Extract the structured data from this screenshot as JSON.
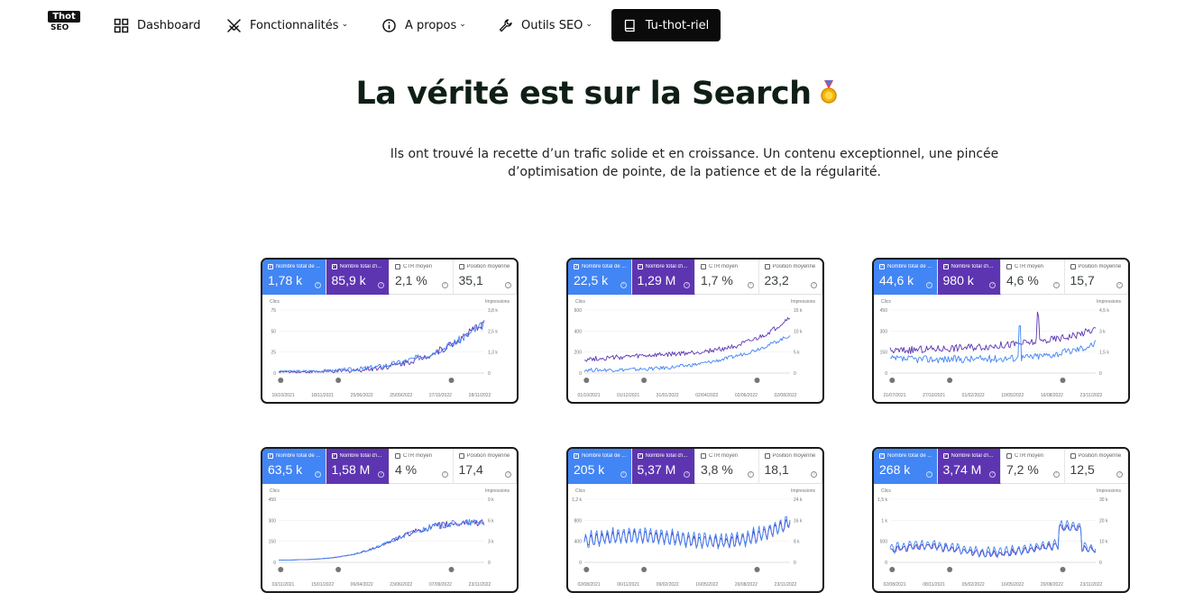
{
  "nav": {
    "logo_top": "Thot",
    "logo_bottom": "SEO",
    "items": [
      {
        "label": "Dashboard",
        "icon": "grid-icon",
        "dropdown": false
      },
      {
        "label": "Fonctionnalités",
        "icon": "swords-icon",
        "dropdown": true
      },
      {
        "label": "A propos",
        "icon": "info-icon",
        "dropdown": true
      },
      {
        "label": "Outils SEO",
        "icon": "wrench-icon",
        "dropdown": true
      }
    ],
    "cta": {
      "label": "Tu-thot-riel",
      "icon": "book-icon"
    }
  },
  "hero": {
    "title": "La vérité est sur la Search",
    "subtitle_line1": "Ils ont trouvé la recette d’un trafic solide et en croissance. Un contenu exceptionnel, une pincée",
    "subtitle_line2": "d’optimisation de pointe, de la patience et de la régularité."
  },
  "metric_labels": [
    "Nombre total de ...",
    "Nombre total d'i...",
    "CTR moyen",
    "Position moyenne"
  ],
  "colors": {
    "clicks": "#4285f4",
    "impressions": "#5e35b1"
  },
  "cards": [
    {
      "metrics": [
        "1,78 k",
        "85,9 k",
        "2,1 %",
        "35,1"
      ],
      "left_title": "Clics",
      "right_title": "Impressions",
      "left_ticks": [
        "75",
        "50",
        "25",
        "0"
      ],
      "right_ticks": [
        "3,8 k",
        "2,5 k",
        "1,3 k",
        "0"
      ],
      "dates": [
        "10/10/2021",
        "18/11/2021",
        "25/06/2022",
        "25/09/2022",
        "27/10/2022",
        "28/11/2022"
      ],
      "markers": 3,
      "chart_data": {
        "type": "line",
        "shape": "late-growth",
        "series": [
          {
            "name": "Clics"
          },
          {
            "name": "Impressions"
          }
        ]
      }
    },
    {
      "metrics": [
        "22,5 k",
        "1,29 M",
        "1,7 %",
        "23,2"
      ],
      "left_title": "Clics",
      "right_title": "Impressions",
      "left_ticks": [
        "600",
        "400",
        "200",
        "0"
      ],
      "right_ticks": [
        "15 k",
        "10 k",
        "5 k",
        "0"
      ],
      "dates": [
        "01/10/2021",
        "01/12/2021",
        "31/01/2022",
        "02/04/2022",
        "02/06/2022",
        "02/08/2022"
      ],
      "markers": 3,
      "chart_data": {
        "type": "line",
        "shape": "slow-rise",
        "series": [
          {
            "name": "Clics"
          },
          {
            "name": "Impressions"
          }
        ]
      }
    },
    {
      "metrics": [
        "44,6 k",
        "980 k",
        "4,6 %",
        "15,7"
      ],
      "left_title": "Clics",
      "right_title": "Impressions",
      "left_ticks": [
        "450",
        "300",
        "150",
        "0"
      ],
      "right_ticks": [
        "4,5 k",
        "3 k",
        "1,5 k",
        "0"
      ],
      "dates": [
        "21/07/2021",
        "27/10/2021",
        "01/02/2022",
        "10/05/2022",
        "16/08/2022",
        "23/11/2022"
      ],
      "markers": 3,
      "chart_data": {
        "type": "line",
        "shape": "noisy-flat",
        "series": [
          {
            "name": "Clics"
          },
          {
            "name": "Impressions"
          }
        ]
      }
    },
    {
      "metrics": [
        "63,5 k",
        "1,58 M",
        "4 %",
        "17,4"
      ],
      "left_title": "Clics",
      "right_title": "Impressions",
      "left_ticks": [
        "450",
        "300",
        "150",
        "0"
      ],
      "right_ticks": [
        "9 k",
        "6 k",
        "3 k",
        "0"
      ],
      "dates": [
        "03/11/2021",
        "15/01/2022",
        "06/04/2022",
        "23/06/2022",
        "07/09/2022",
        "23/11/2022"
      ],
      "markers": 3,
      "chart_data": {
        "type": "line",
        "shape": "s-curve",
        "series": [
          {
            "name": "Clics"
          },
          {
            "name": "Impressions"
          }
        ]
      }
    },
    {
      "metrics": [
        "205 k",
        "5,37 M",
        "3,8 %",
        "18,1"
      ],
      "left_title": "Clics",
      "right_title": "Impressions",
      "left_ticks": [
        "1,2 k",
        "800",
        "400",
        "0"
      ],
      "right_ticks": [
        "24 k",
        "16 k",
        "8 k",
        "0"
      ],
      "dates": [
        "02/08/2021",
        "06/11/2021",
        "09/02/2022",
        "16/05/2022",
        "20/08/2022",
        "23/11/2022"
      ],
      "markers": 3,
      "chart_data": {
        "type": "line",
        "shape": "weekly-wave",
        "series": [
          {
            "name": "Clics"
          },
          {
            "name": "Impressions"
          }
        ]
      }
    },
    {
      "metrics": [
        "268 k",
        "3,74 M",
        "7,2 %",
        "12,5"
      ],
      "left_title": "Clics",
      "right_title": "Impressions",
      "left_ticks": [
        "1,5 k",
        "1 k",
        "500",
        "0"
      ],
      "right_ticks": [
        "30 k",
        "20 k",
        "10 k",
        "0"
      ],
      "dates": [
        "02/08/2021",
        "08/11/2021",
        "05/02/2022",
        "16/05/2022",
        "20/08/2022",
        "23/11/2022"
      ],
      "markers": 3,
      "chart_data": {
        "type": "line",
        "shape": "wave-spike",
        "series": [
          {
            "name": "Clics"
          },
          {
            "name": "Impressions"
          }
        ]
      }
    }
  ]
}
